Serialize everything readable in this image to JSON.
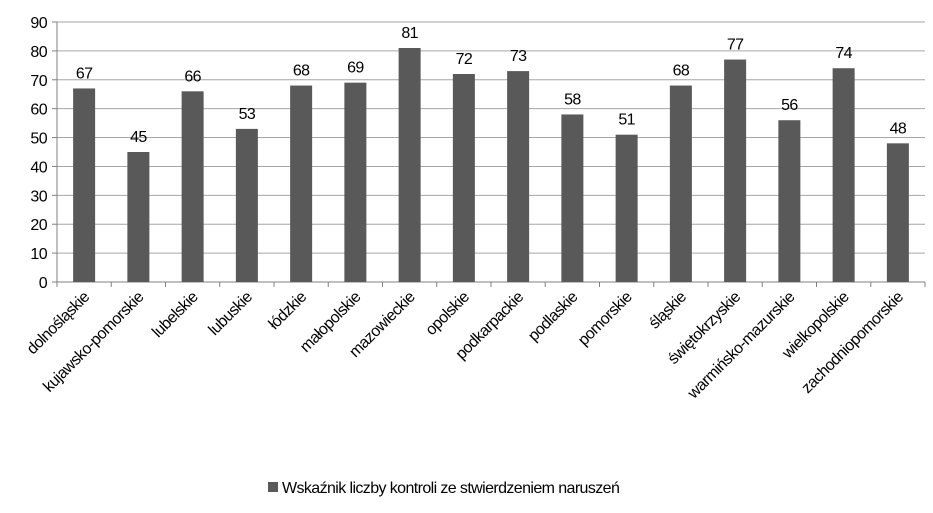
{
  "chart_data": {
    "type": "bar",
    "categories": [
      "dolnośląskie",
      "kujawsko-pomorskie",
      "lubelskie",
      "lubuskie",
      "łódzkie",
      "małopolskie",
      "mazowieckie",
      "opolskie",
      "podkarpackie",
      "podlaskie",
      "pomorskie",
      "śląskie",
      "świętokrzyskie",
      "warmińsko-mazurskie",
      "wielkopolskie",
      "zachodniopomorskie"
    ],
    "series": [
      {
        "name": "Wskaźnik liczby kontroli ze stwierdzeniem naruszeń",
        "color": "#595959",
        "values": [
          67,
          45,
          66,
          53,
          68,
          69,
          81,
          72,
          73,
          58,
          51,
          68,
          77,
          56,
          74,
          48
        ]
      }
    ],
    "ylim": [
      0,
      90
    ],
    "yticks": [
      0,
      10,
      20,
      30,
      40,
      50,
      60,
      70,
      80,
      90
    ],
    "grid": true,
    "legend": "bottom"
  }
}
